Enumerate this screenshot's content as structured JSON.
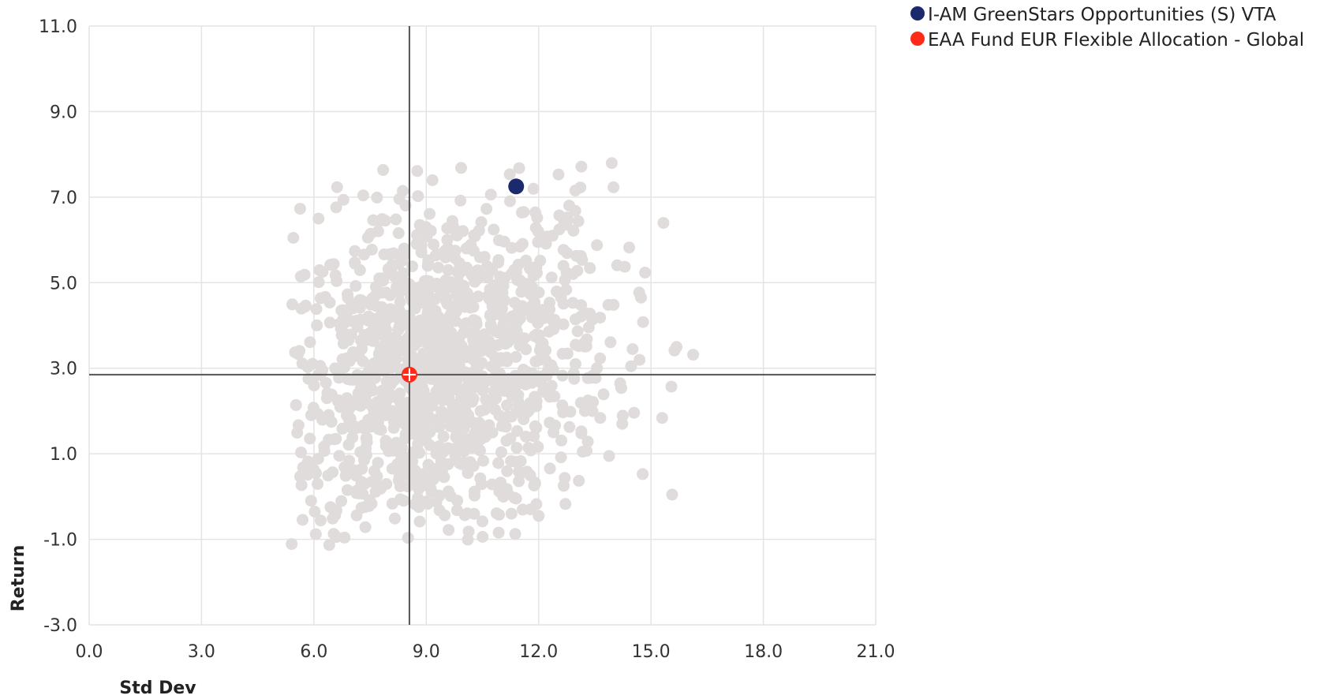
{
  "chart_data": {
    "type": "scatter",
    "xlabel": "Std Dev",
    "ylabel": "Return",
    "xlim": [
      0,
      21
    ],
    "ylim": [
      -3,
      11
    ],
    "x_ticks": [
      "0.0",
      "3.0",
      "6.0",
      "9.0",
      "12.0",
      "15.0",
      "18.0",
      "21.0"
    ],
    "y_ticks": [
      "11.0",
      "9.0",
      "7.0",
      "5.0",
      "3.0",
      "1.0",
      "-1.0",
      "-3.0"
    ],
    "grid": true,
    "legend_position": "top-right",
    "reference_lines": {
      "x": 8.55,
      "y": 2.85
    },
    "series": [
      {
        "name": "I-AM GreenStars Opportunities (S) VTA",
        "color": "#1a2a6c",
        "points": [
          {
            "x": 11.4,
            "y": 7.25
          }
        ]
      },
      {
        "name": "EAA Fund EUR Flexible Allocation - Global",
        "color": "#ff2a1a",
        "points": [
          {
            "x": 8.55,
            "y": 2.85
          }
        ]
      }
    ],
    "background_points": {
      "color": "#e0dcdc",
      "count": 1250,
      "x_range": [
        5.4,
        16.5
      ],
      "y_range": [
        -1.2,
        7.8
      ]
    }
  },
  "legend": {
    "items": [
      {
        "label": "I-AM GreenStars Opportunities (S) VTA",
        "color": "#1a2a6c"
      },
      {
        "label": "EAA Fund EUR Flexible Allocation - Global",
        "color": "#ff2a1a"
      }
    ]
  }
}
